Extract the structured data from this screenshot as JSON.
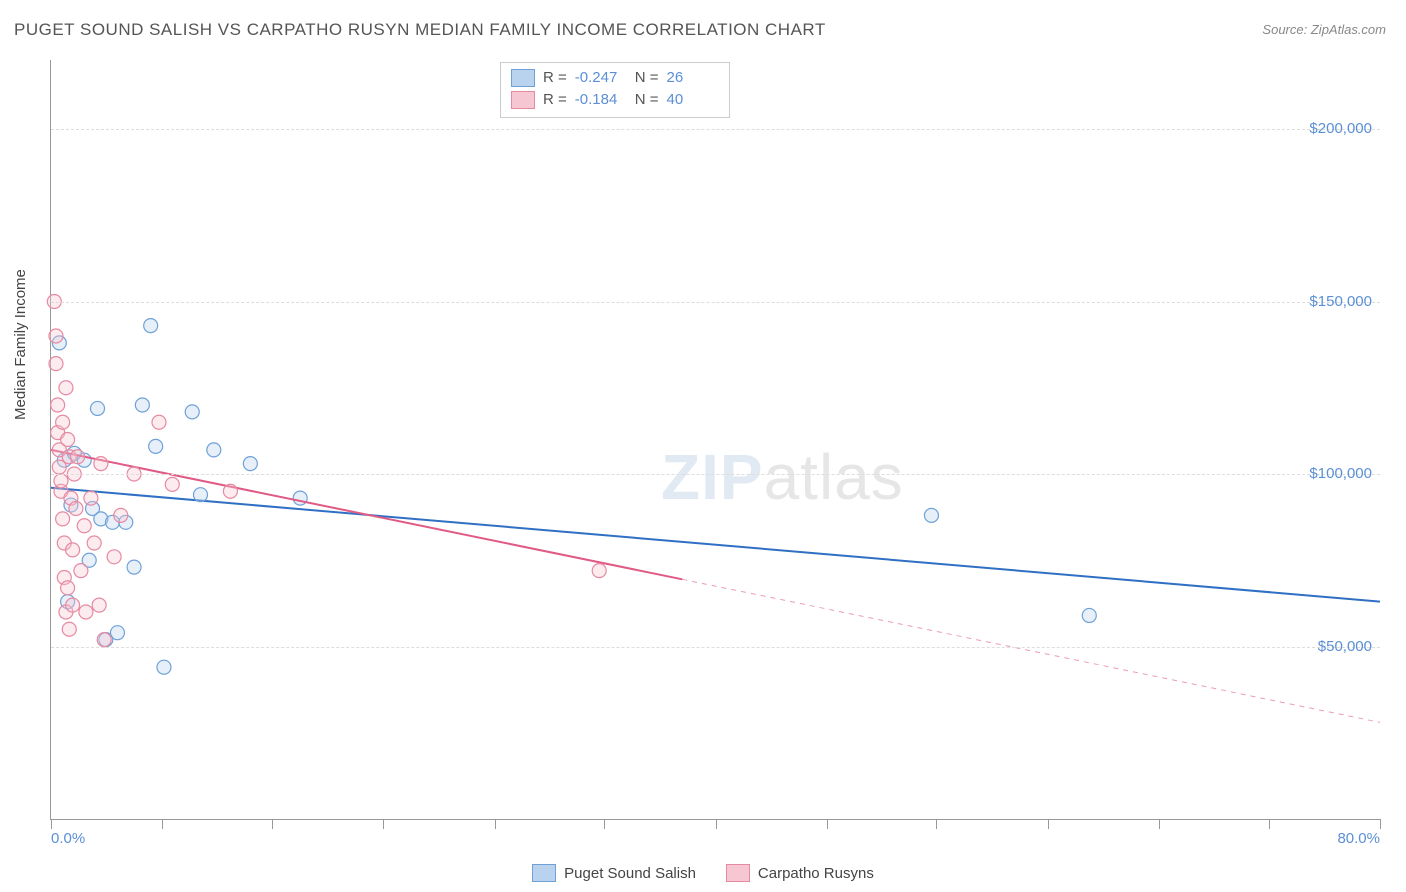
{
  "title": "PUGET SOUND SALISH VS CARPATHO RUSYN MEDIAN FAMILY INCOME CORRELATION CHART",
  "source_label": "Source:",
  "source_value": "ZipAtlas.com",
  "watermark": {
    "zip": "ZIP",
    "atlas": "atlas"
  },
  "chart": {
    "type": "scatter",
    "xlim": [
      0,
      80
    ],
    "ylim": [
      0,
      220000
    ],
    "x_ticks": [
      0,
      6.7,
      13.3,
      20,
      26.7,
      33.3,
      40,
      46.7,
      53.3,
      60,
      66.7,
      73.3,
      80
    ],
    "y_gridlines": [
      50000,
      100000,
      150000,
      200000
    ],
    "y_tick_labels": [
      "$50,000",
      "$100,000",
      "$150,000",
      "$200,000"
    ],
    "x_tick_labels": {
      "min": "0.0%",
      "max": "80.0%"
    },
    "ylabel": "Median Family Income",
    "background": "#ffffff",
    "grid_color": "#dddddd",
    "axis_color": "#999999",
    "tick_label_color": "#5b8fd6",
    "marker_radius": 7,
    "series": [
      {
        "name": "Puget Sound Salish",
        "color_fill": "#b9d3ef",
        "color_stroke": "#6fa1d8",
        "line_color": "#2f6fc4",
        "line_width": 2,
        "r": -0.247,
        "n": 26,
        "trend": {
          "x1": 0,
          "y1": 96000,
          "x2": 80,
          "y2": 63000,
          "solid_until_x": 80
        },
        "points": [
          [
            0.5,
            138000
          ],
          [
            0.8,
            104000
          ],
          [
            1.0,
            63000
          ],
          [
            1.2,
            91000
          ],
          [
            1.4,
            106000
          ],
          [
            2.0,
            104000
          ],
          [
            2.3,
            75000
          ],
          [
            2.5,
            90000
          ],
          [
            2.8,
            119000
          ],
          [
            3.0,
            87000
          ],
          [
            3.3,
            52000
          ],
          [
            3.7,
            86000
          ],
          [
            4.0,
            54000
          ],
          [
            4.5,
            86000
          ],
          [
            5.0,
            73000
          ],
          [
            5.5,
            120000
          ],
          [
            6.0,
            143000
          ],
          [
            6.3,
            108000
          ],
          [
            6.8,
            44000
          ],
          [
            8.5,
            118000
          ],
          [
            9.0,
            94000
          ],
          [
            9.8,
            107000
          ],
          [
            12.0,
            103000
          ],
          [
            15.0,
            93000
          ],
          [
            53.0,
            88000
          ],
          [
            62.5,
            59000
          ]
        ]
      },
      {
        "name": "Carpatho Rusyns",
        "color_fill": "#f6c6d2",
        "color_stroke": "#e68aa2",
        "line_color": "#e05a84",
        "line_width": 2,
        "r": -0.184,
        "n": 40,
        "trend": {
          "x1": 0,
          "y1": 107000,
          "x2": 80,
          "y2": 28000,
          "solid_until_x": 38
        },
        "points": [
          [
            0.2,
            150000
          ],
          [
            0.3,
            140000
          ],
          [
            0.3,
            132000
          ],
          [
            0.4,
            120000
          ],
          [
            0.4,
            112000
          ],
          [
            0.5,
            107000
          ],
          [
            0.5,
            102000
          ],
          [
            0.6,
            95000
          ],
          [
            0.6,
            98000
          ],
          [
            0.7,
            115000
          ],
          [
            0.7,
            87000
          ],
          [
            0.8,
            80000
          ],
          [
            0.8,
            70000
          ],
          [
            0.9,
            60000
          ],
          [
            0.9,
            125000
          ],
          [
            1.0,
            110000
          ],
          [
            1.0,
            67000
          ],
          [
            1.1,
            55000
          ],
          [
            1.1,
            105000
          ],
          [
            1.2,
            93000
          ],
          [
            1.3,
            62000
          ],
          [
            1.3,
            78000
          ],
          [
            1.4,
            100000
          ],
          [
            1.5,
            90000
          ],
          [
            1.6,
            105000
          ],
          [
            1.8,
            72000
          ],
          [
            2.0,
            85000
          ],
          [
            2.1,
            60000
          ],
          [
            2.4,
            93000
          ],
          [
            2.6,
            80000
          ],
          [
            2.9,
            62000
          ],
          [
            3.0,
            103000
          ],
          [
            3.2,
            52000
          ],
          [
            3.8,
            76000
          ],
          [
            4.2,
            88000
          ],
          [
            5.0,
            100000
          ],
          [
            6.5,
            115000
          ],
          [
            7.3,
            97000
          ],
          [
            10.8,
            95000
          ],
          [
            33.0,
            72000
          ]
        ]
      }
    ]
  },
  "stats_box": {
    "r_label": "R =",
    "n_label": "N ="
  },
  "legend": {
    "series1": "Puget Sound Salish",
    "series2": "Carpatho Rusyns"
  }
}
